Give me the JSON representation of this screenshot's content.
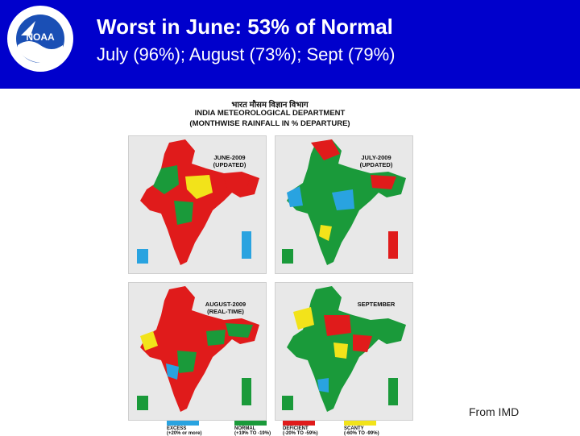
{
  "header": {
    "title": "Worst in June: 53% of Normal",
    "subtitle": "July (96%); August (73%); Sept (79%)",
    "logo_text": "NOAA"
  },
  "figure": {
    "hindi_title": "भारत मौसम विज्ञान विभाग",
    "department": "INDIA   METEOROLOGICAL   DEPARTMENT",
    "caption": "(MONTHWISE RAINFALL IN % DEPARTURE)",
    "panels": [
      {
        "label": "JUNE-2009",
        "sub": "(UPDATED)"
      },
      {
        "label": "JULY-2009",
        "sub": "(UPDATED)"
      },
      {
        "label": "AUGUST-2009",
        "sub": "(REAL-TIME)"
      },
      {
        "label": "SEPTEMBER",
        "sub": ""
      }
    ],
    "legend": [
      {
        "label": "EXCESS",
        "range": "(+20% or more)",
        "color": "#29a3e0"
      },
      {
        "label": "NORMAL",
        "range": "(+19% TO -19%)",
        "color": "#1a9a3a"
      },
      {
        "label": "DEFICIENT",
        "range": "(-20% TO -59%)",
        "color": "#e01b1b"
      },
      {
        "label": "SCANTY",
        "range": "(-60% TO -99%)",
        "color": "#f2e31a"
      }
    ]
  },
  "credit": "From IMD"
}
